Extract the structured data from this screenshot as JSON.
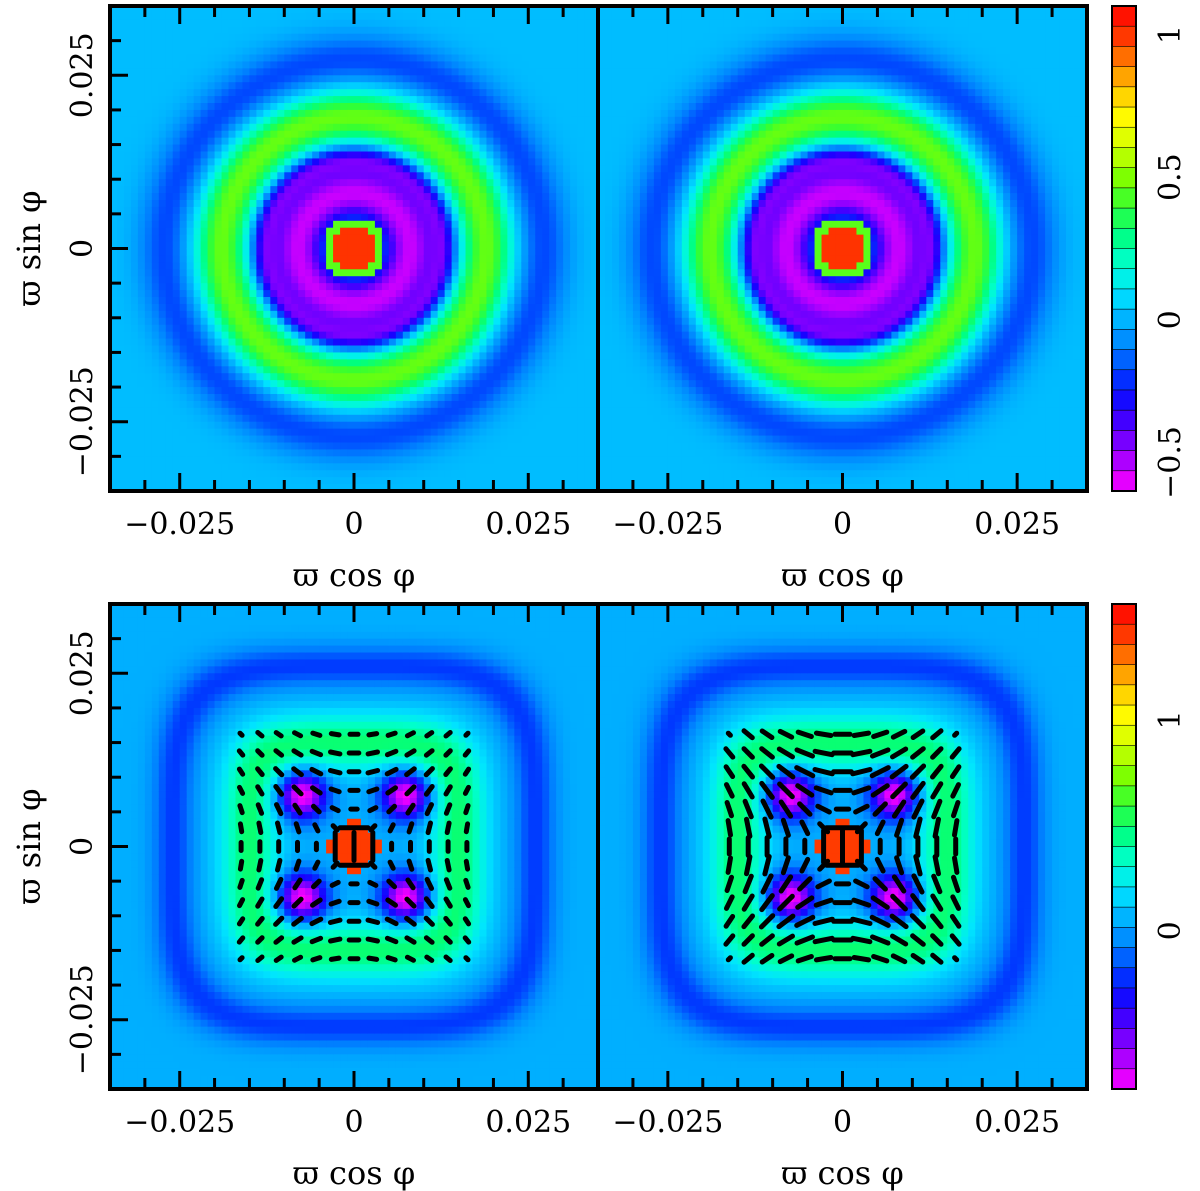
{
  "figure": {
    "rows": [
      {
        "panels": [
          {
            "pattern": "rings",
            "has_vectors": false
          },
          {
            "pattern": "rings",
            "has_vectors": false
          }
        ],
        "colorbar": {
          "range": [
            -0.6,
            1.1
          ],
          "ticks": [
            1,
            0.5,
            0,
            -0.5
          ],
          "tick_labels": [
            "1",
            "0.5",
            "0",
            "−0.5"
          ]
        }
      },
      {
        "panels": [
          {
            "pattern": "cross",
            "has_vectors": true,
            "vector_strength": "weak"
          },
          {
            "pattern": "cross",
            "has_vectors": true,
            "vector_strength": "strong"
          }
        ],
        "colorbar": {
          "range": [
            -0.75,
            1.55
          ],
          "ticks": [
            1,
            0
          ],
          "tick_labels": [
            "1",
            "0"
          ]
        }
      }
    ]
  },
  "chart_data": [
    {
      "type": "heatmap",
      "panel": "top-left",
      "xlabel": "ϖ cos φ",
      "ylabel": "ϖ sin φ",
      "xlim": [
        -0.035,
        0.035
      ],
      "ylim": [
        -0.035,
        0.035
      ],
      "xticks": [
        -0.025,
        0,
        0.025
      ],
      "xtick_labels": [
        "−0.025",
        "0",
        "0.025"
      ],
      "yticks": [
        0.025,
        0,
        -0.025
      ],
      "ytick_labels": [
        "0.025",
        "0",
        "−0.025"
      ]
    },
    {
      "type": "heatmap",
      "panel": "top-right",
      "xlabel": "ϖ cos φ",
      "ylabel": "",
      "xlim": [
        -0.035,
        0.035
      ],
      "ylim": [
        -0.035,
        0.035
      ],
      "xticks": [
        -0.025,
        0,
        0.025
      ],
      "xtick_labels": [
        "−0.025",
        "0",
        "0.025"
      ]
    },
    {
      "type": "heatmap",
      "panel": "bottom-left",
      "xlabel": "ϖ cos φ",
      "ylabel": "ϖ sin φ",
      "xlim": [
        -0.035,
        0.035
      ],
      "ylim": [
        -0.035,
        0.035
      ],
      "xticks": [
        -0.025,
        0,
        0.025
      ],
      "xtick_labels": [
        "−0.025",
        "0",
        "0.025"
      ],
      "yticks": [
        0.025,
        0,
        -0.025
      ],
      "ytick_labels": [
        "0.025",
        "0",
        "−0.025"
      ]
    },
    {
      "type": "heatmap",
      "panel": "bottom-right",
      "xlabel": "ϖ cos φ",
      "ylabel": "",
      "xlim": [
        -0.035,
        0.035
      ],
      "ylim": [
        -0.035,
        0.035
      ],
      "xticks": [
        -0.025,
        0,
        0.025
      ],
      "xtick_labels": [
        "−0.025",
        "0",
        "0.025"
      ]
    }
  ],
  "colors": {
    "palette": [
      "#ff00ff",
      "#b200ff",
      "#6600ff",
      "#1a00ff",
      "#0033ff",
      "#0080ff",
      "#00b3ff",
      "#00e5ff",
      "#00ffcc",
      "#00ff80",
      "#33ff33",
      "#80ff00",
      "#ccff00",
      "#ffff00",
      "#ffcc00",
      "#ff8000",
      "#ff3300",
      "#ff0000"
    ]
  }
}
